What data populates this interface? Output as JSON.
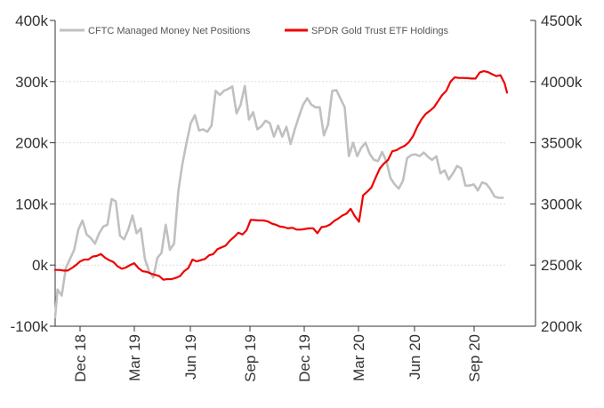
{
  "chart_data": {
    "type": "line",
    "title": "",
    "legend_position": "top",
    "grid": true,
    "x_ticks": [
      "Dec 18",
      "Mar 19",
      "Jun 19",
      "Sep 19",
      "Dec 19",
      "Mar 20",
      "Jun 20",
      "Sep 20"
    ],
    "x_range": [
      "2018-10-26",
      "2020-11-24"
    ],
    "y_left": {
      "ticks": [
        "400k",
        "300k",
        "200k",
        "100k",
        "0k",
        "-100k"
      ],
      "range": [
        -100000,
        400000
      ]
    },
    "y_right": {
      "ticks": [
        "4500k",
        "4000k",
        "3500k",
        "3000k",
        "2500k",
        "2000k"
      ],
      "range": [
        2000000,
        4500000
      ]
    },
    "series": [
      {
        "name": "CFTC Managed Money Net Positions",
        "color": "#c0c0c0",
        "axis": "left",
        "points": [
          [
            "2018-10-26",
            -85000
          ],
          [
            "2018-10-30",
            -40000
          ],
          [
            "2018-11-06",
            -50000
          ],
          [
            "2018-11-13",
            -5000
          ],
          [
            "2018-11-20",
            10000
          ],
          [
            "2018-11-27",
            25000
          ],
          [
            "2018-12-04",
            58000
          ],
          [
            "2018-12-11",
            73000
          ],
          [
            "2018-12-18",
            50000
          ],
          [
            "2018-12-25",
            44000
          ],
          [
            "2019-01-01",
            35000
          ],
          [
            "2019-01-08",
            52000
          ],
          [
            "2019-01-15",
            63000
          ],
          [
            "2019-01-22",
            66000
          ],
          [
            "2019-01-29",
            108000
          ],
          [
            "2019-02-05",
            104000
          ],
          [
            "2019-02-12",
            48000
          ],
          [
            "2019-02-19",
            42000
          ],
          [
            "2019-02-26",
            58000
          ],
          [
            "2019-03-05",
            81000
          ],
          [
            "2019-03-12",
            52000
          ],
          [
            "2019-03-19",
            60000
          ],
          [
            "2019-03-26",
            10000
          ],
          [
            "2019-04-02",
            -10000
          ],
          [
            "2019-04-09",
            -20000
          ],
          [
            "2019-04-16",
            12000
          ],
          [
            "2019-04-23",
            20000
          ],
          [
            "2019-04-30",
            66000
          ],
          [
            "2019-05-07",
            25000
          ],
          [
            "2019-05-14",
            35000
          ],
          [
            "2019-05-21",
            120000
          ],
          [
            "2019-05-28",
            165000
          ],
          [
            "2019-06-04",
            200000
          ],
          [
            "2019-06-11",
            232000
          ],
          [
            "2019-06-18",
            245000
          ],
          [
            "2019-06-25",
            220000
          ],
          [
            "2019-07-02",
            222000
          ],
          [
            "2019-07-09",
            218000
          ],
          [
            "2019-07-16",
            228000
          ],
          [
            "2019-07-23",
            285000
          ],
          [
            "2019-07-30",
            278000
          ],
          [
            "2019-08-06",
            285000
          ],
          [
            "2019-08-13",
            288000
          ],
          [
            "2019-08-20",
            292000
          ],
          [
            "2019-08-27",
            248000
          ],
          [
            "2019-09-03",
            262000
          ],
          [
            "2019-09-10",
            293000
          ],
          [
            "2019-09-17",
            238000
          ],
          [
            "2019-09-24",
            250000
          ],
          [
            "2019-10-01",
            222000
          ],
          [
            "2019-10-08",
            227000
          ],
          [
            "2019-10-15",
            236000
          ],
          [
            "2019-10-22",
            232000
          ],
          [
            "2019-10-29",
            210000
          ],
          [
            "2019-11-05",
            228000
          ],
          [
            "2019-11-12",
            210000
          ],
          [
            "2019-11-19",
            226000
          ],
          [
            "2019-11-26",
            198000
          ],
          [
            "2019-12-03",
            222000
          ],
          [
            "2019-12-10",
            243000
          ],
          [
            "2019-12-17",
            262000
          ],
          [
            "2019-12-24",
            273000
          ],
          [
            "2019-12-31",
            262000
          ],
          [
            "2020-01-07",
            258000
          ],
          [
            "2020-01-14",
            258000
          ],
          [
            "2020-01-21",
            212000
          ],
          [
            "2020-01-28",
            230000
          ],
          [
            "2020-02-04",
            285000
          ],
          [
            "2020-02-11",
            286000
          ],
          [
            "2020-02-18",
            272000
          ],
          [
            "2020-02-25",
            258000
          ],
          [
            "2020-03-03",
            178000
          ],
          [
            "2020-03-10",
            200000
          ],
          [
            "2020-03-17",
            178000
          ],
          [
            "2020-03-24",
            192000
          ],
          [
            "2020-03-31",
            200000
          ],
          [
            "2020-04-07",
            182000
          ],
          [
            "2020-04-14",
            172000
          ],
          [
            "2020-04-21",
            170000
          ],
          [
            "2020-04-28",
            185000
          ],
          [
            "2020-05-05",
            170000
          ],
          [
            "2020-05-12",
            142000
          ],
          [
            "2020-05-19",
            132000
          ],
          [
            "2020-05-26",
            125000
          ],
          [
            "2020-06-02",
            138000
          ],
          [
            "2020-06-09",
            175000
          ],
          [
            "2020-06-16",
            180000
          ],
          [
            "2020-06-23",
            181000
          ],
          [
            "2020-06-30",
            178000
          ],
          [
            "2020-07-07",
            184000
          ],
          [
            "2020-07-14",
            177000
          ],
          [
            "2020-07-21",
            172000
          ],
          [
            "2020-07-28",
            178000
          ],
          [
            "2020-08-04",
            150000
          ],
          [
            "2020-08-11",
            155000
          ],
          [
            "2020-08-18",
            140000
          ],
          [
            "2020-08-25",
            150000
          ],
          [
            "2020-09-01",
            162000
          ],
          [
            "2020-09-08",
            158000
          ],
          [
            "2020-09-15",
            130000
          ],
          [
            "2020-09-22",
            130000
          ],
          [
            "2020-09-29",
            132000
          ],
          [
            "2020-10-06",
            122000
          ],
          [
            "2020-10-13",
            135000
          ],
          [
            "2020-10-20",
            133000
          ],
          [
            "2020-10-27",
            124000
          ],
          [
            "2020-11-03",
            112000
          ],
          [
            "2020-11-10",
            110000
          ],
          [
            "2020-11-17",
            110000
          ]
        ]
      },
      {
        "name": "SPDR Gold Trust ETF Holdings",
        "color": "#ee0000",
        "axis": "right",
        "points": [
          [
            "2018-10-26",
            2460000
          ],
          [
            "2018-11-02",
            2460000
          ],
          [
            "2018-11-09",
            2455000
          ],
          [
            "2018-11-16",
            2455000
          ],
          [
            "2018-11-23",
            2475000
          ],
          [
            "2018-11-30",
            2500000
          ],
          [
            "2018-12-07",
            2530000
          ],
          [
            "2018-12-14",
            2545000
          ],
          [
            "2018-12-21",
            2545000
          ],
          [
            "2018-12-28",
            2570000
          ],
          [
            "2019-01-04",
            2575000
          ],
          [
            "2019-01-11",
            2590000
          ],
          [
            "2019-01-18",
            2560000
          ],
          [
            "2019-01-25",
            2540000
          ],
          [
            "2019-02-01",
            2525000
          ],
          [
            "2019-02-08",
            2490000
          ],
          [
            "2019-02-15",
            2470000
          ],
          [
            "2019-02-22",
            2480000
          ],
          [
            "2019-03-01",
            2500000
          ],
          [
            "2019-03-08",
            2515000
          ],
          [
            "2019-03-15",
            2475000
          ],
          [
            "2019-03-22",
            2450000
          ],
          [
            "2019-03-29",
            2445000
          ],
          [
            "2019-04-05",
            2430000
          ],
          [
            "2019-04-12",
            2420000
          ],
          [
            "2019-04-19",
            2410000
          ],
          [
            "2019-04-26",
            2380000
          ],
          [
            "2019-05-03",
            2385000
          ],
          [
            "2019-05-10",
            2385000
          ],
          [
            "2019-05-17",
            2395000
          ],
          [
            "2019-05-24",
            2410000
          ],
          [
            "2019-05-31",
            2450000
          ],
          [
            "2019-06-07",
            2475000
          ],
          [
            "2019-06-14",
            2545000
          ],
          [
            "2019-06-21",
            2530000
          ],
          [
            "2019-06-28",
            2540000
          ],
          [
            "2019-07-05",
            2550000
          ],
          [
            "2019-07-12",
            2580000
          ],
          [
            "2019-07-19",
            2590000
          ],
          [
            "2019-07-26",
            2630000
          ],
          [
            "2019-08-02",
            2645000
          ],
          [
            "2019-08-09",
            2660000
          ],
          [
            "2019-08-16",
            2700000
          ],
          [
            "2019-08-23",
            2730000
          ],
          [
            "2019-08-30",
            2765000
          ],
          [
            "2019-09-06",
            2750000
          ],
          [
            "2019-09-13",
            2785000
          ],
          [
            "2019-09-20",
            2870000
          ],
          [
            "2019-09-27",
            2868000
          ],
          [
            "2019-10-04",
            2865000
          ],
          [
            "2019-10-11",
            2865000
          ],
          [
            "2019-10-18",
            2858000
          ],
          [
            "2019-10-25",
            2840000
          ],
          [
            "2019-11-01",
            2830000
          ],
          [
            "2019-11-08",
            2815000
          ],
          [
            "2019-11-15",
            2810000
          ],
          [
            "2019-11-22",
            2800000
          ],
          [
            "2019-11-29",
            2805000
          ],
          [
            "2019-12-06",
            2790000
          ],
          [
            "2019-12-13",
            2790000
          ],
          [
            "2019-12-20",
            2795000
          ],
          [
            "2019-12-27",
            2800000
          ],
          [
            "2020-01-03",
            2800000
          ],
          [
            "2020-01-10",
            2760000
          ],
          [
            "2020-01-17",
            2810000
          ],
          [
            "2020-01-24",
            2815000
          ],
          [
            "2020-01-31",
            2830000
          ],
          [
            "2020-02-07",
            2860000
          ],
          [
            "2020-02-14",
            2880000
          ],
          [
            "2020-02-21",
            2905000
          ],
          [
            "2020-02-28",
            2920000
          ],
          [
            "2020-03-06",
            2960000
          ],
          [
            "2020-03-13",
            2900000
          ],
          [
            "2020-03-20",
            2855000
          ],
          [
            "2020-03-27",
            3070000
          ],
          [
            "2020-04-03",
            3100000
          ],
          [
            "2020-04-10",
            3135000
          ],
          [
            "2020-04-17",
            3215000
          ],
          [
            "2020-04-24",
            3290000
          ],
          [
            "2020-05-01",
            3330000
          ],
          [
            "2020-05-08",
            3360000
          ],
          [
            "2020-05-15",
            3430000
          ],
          [
            "2020-05-22",
            3440000
          ],
          [
            "2020-05-29",
            3460000
          ],
          [
            "2020-06-05",
            3475000
          ],
          [
            "2020-06-12",
            3505000
          ],
          [
            "2020-06-19",
            3555000
          ],
          [
            "2020-06-26",
            3630000
          ],
          [
            "2020-07-03",
            3690000
          ],
          [
            "2020-07-10",
            3735000
          ],
          [
            "2020-07-17",
            3760000
          ],
          [
            "2020-07-24",
            3790000
          ],
          [
            "2020-07-31",
            3840000
          ],
          [
            "2020-08-07",
            3890000
          ],
          [
            "2020-08-14",
            3925000
          ],
          [
            "2020-08-21",
            4000000
          ],
          [
            "2020-08-28",
            4035000
          ],
          [
            "2020-09-04",
            4030000
          ],
          [
            "2020-09-11",
            4030000
          ],
          [
            "2020-09-18",
            4028000
          ],
          [
            "2020-09-25",
            4025000
          ],
          [
            "2020-10-02",
            4025000
          ],
          [
            "2020-10-09",
            4075000
          ],
          [
            "2020-10-16",
            4085000
          ],
          [
            "2020-10-23",
            4078000
          ],
          [
            "2020-10-30",
            4060000
          ],
          [
            "2020-11-06",
            4045000
          ],
          [
            "2020-11-13",
            4052000
          ],
          [
            "2020-11-20",
            3985000
          ],
          [
            "2020-11-24",
            3910000
          ]
        ]
      }
    ]
  }
}
